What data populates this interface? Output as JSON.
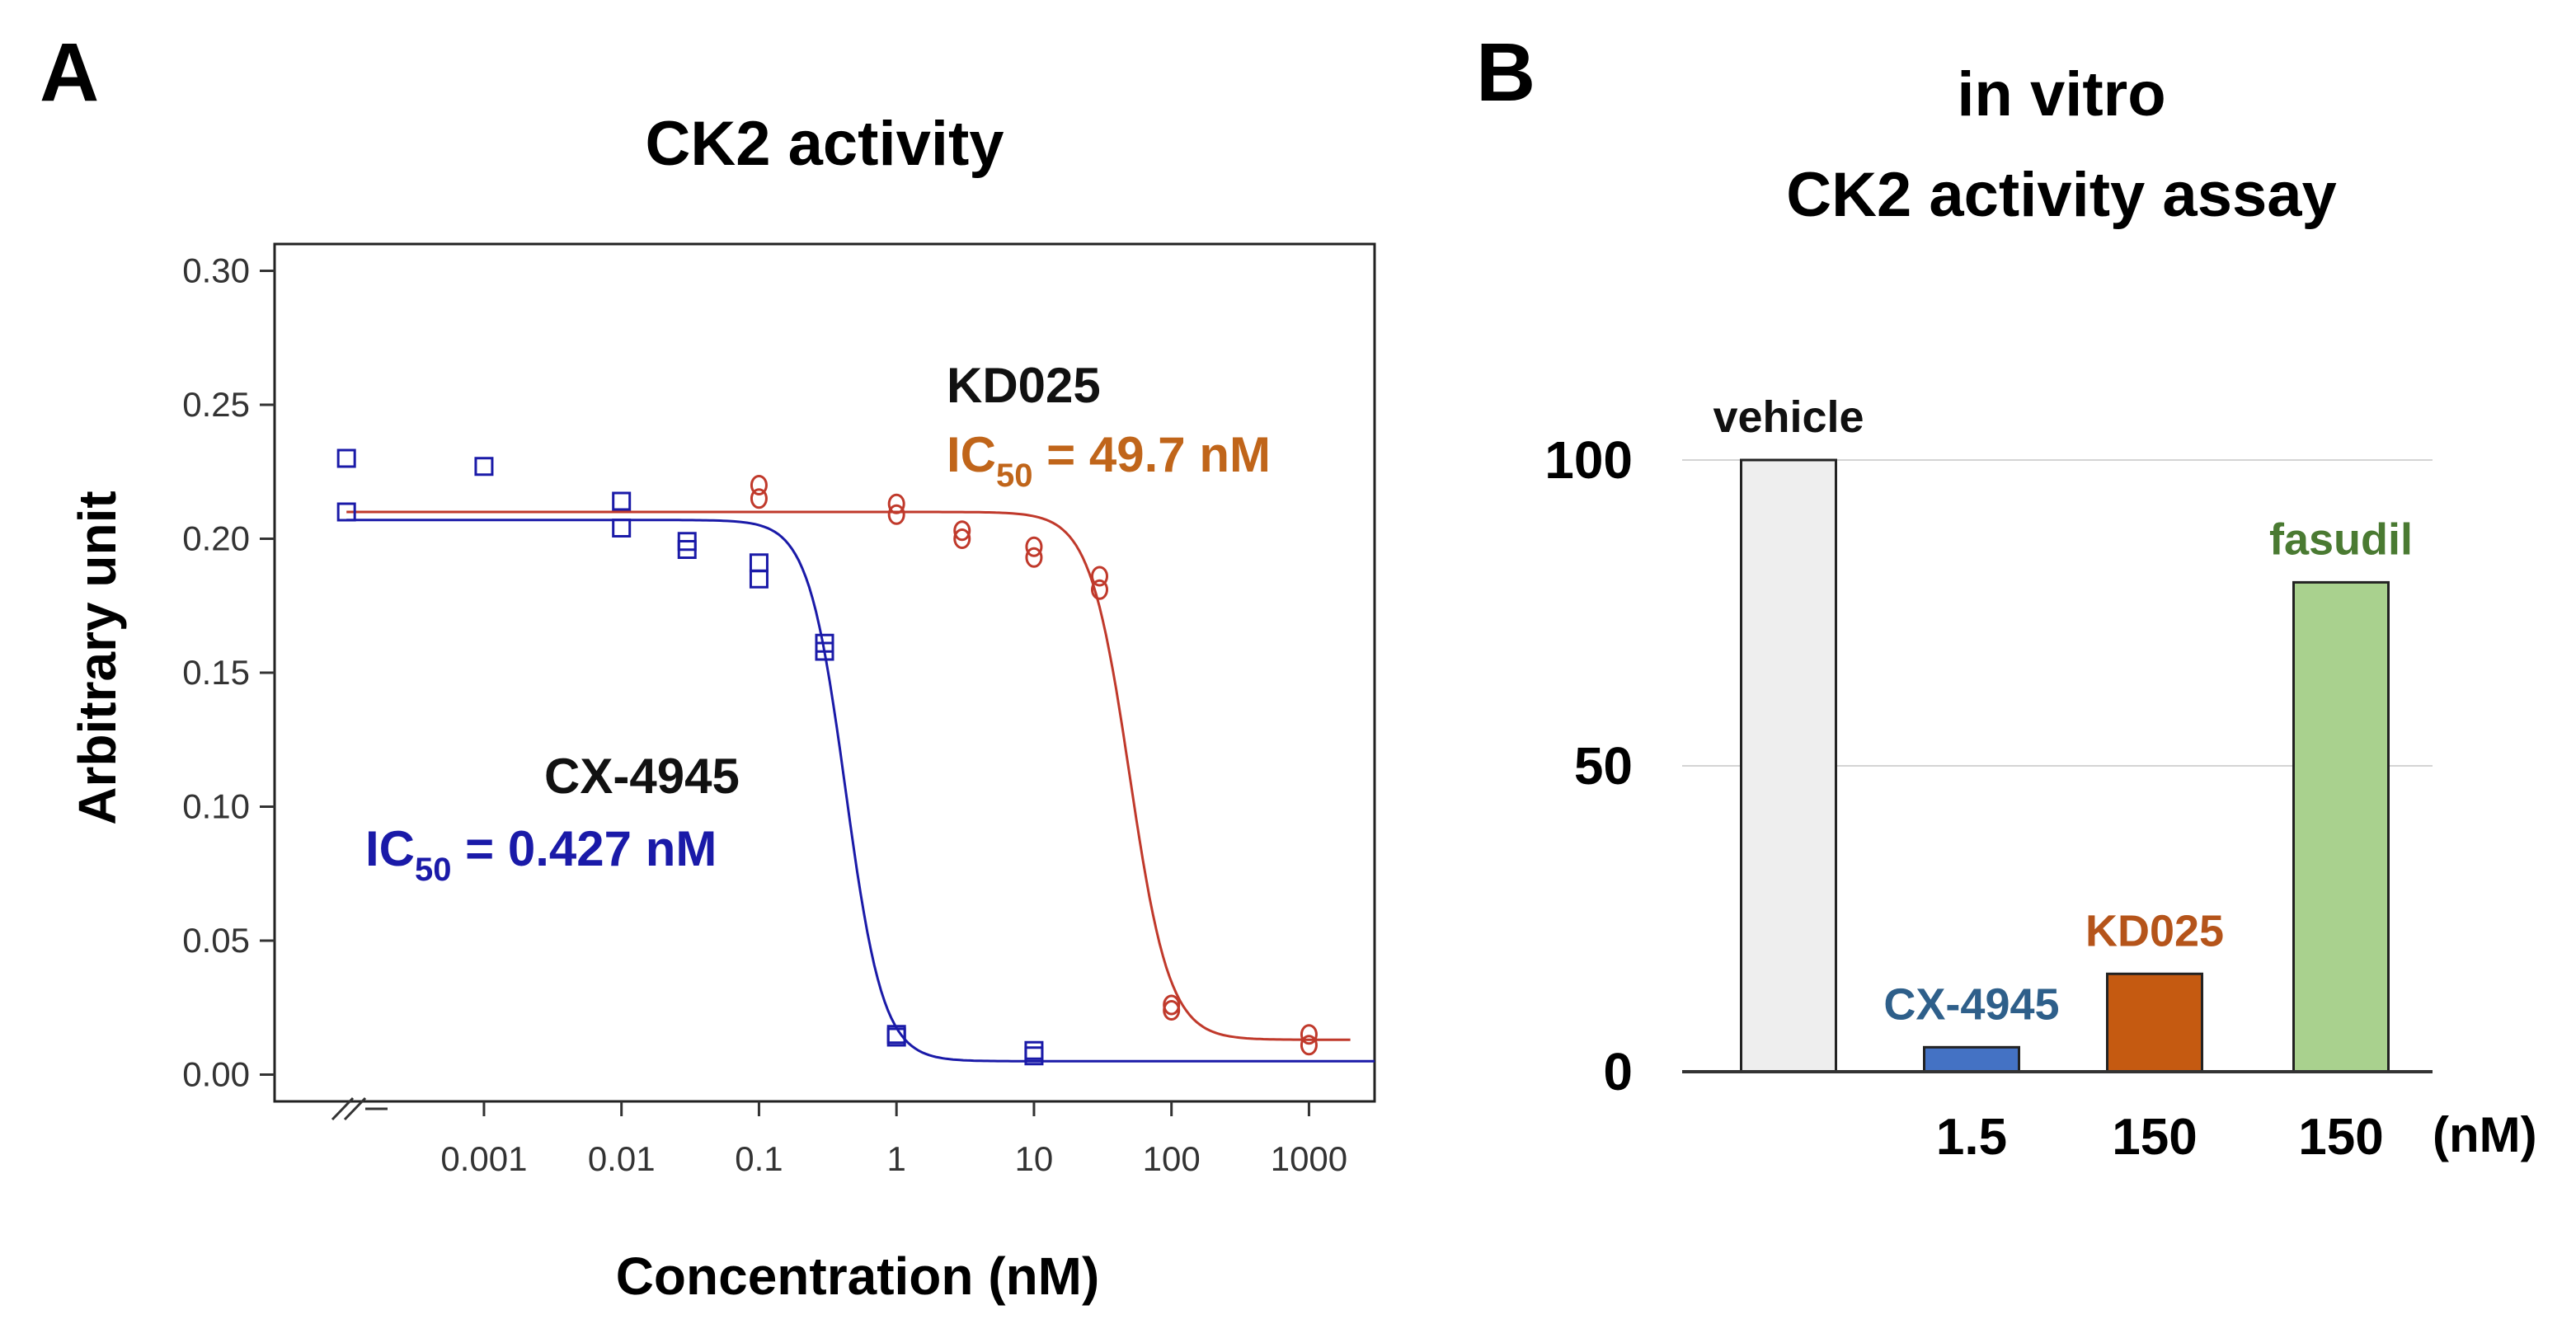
{
  "chart_data": [
    {
      "panel_label": "A",
      "type": "scatter",
      "title": "CK2 activity",
      "xlabel": "Concentration (nM)",
      "ylabel": "Arbitrary unit",
      "x_scale": "log",
      "x_ticks": [
        "0.001",
        "0.01",
        "0.1",
        "1",
        "10",
        "100",
        "1000"
      ],
      "x_tick_values": [
        0.001,
        0.01,
        0.1,
        1,
        10,
        100,
        1000
      ],
      "xlim": [
        3e-05,
        3000
      ],
      "y_ticks": [
        "0.00",
        "0.05",
        "0.10",
        "0.15",
        "0.20",
        "0.25",
        "0.30"
      ],
      "y_tick_values": [
        0,
        0.05,
        0.1,
        0.15,
        0.2,
        0.25,
        0.3
      ],
      "ylim": [
        -0.01,
        0.31
      ],
      "axis_break_on_x": true,
      "series": [
        {
          "name": "CX-4945",
          "label_name": "CX-4945",
          "ic50_label": "IC50 = 0.427 nM",
          "ic50_prefix": "IC",
          "ic50_sub": "50",
          "ic50_suffix": " = 0.427 nM",
          "color": "#1a1aa8",
          "name_color": "#111111",
          "marker": "square",
          "points": [
            {
              "x": 0.0001,
              "y": 0.23
            },
            {
              "x": 0.0001,
              "y": 0.21
            },
            {
              "x": 0.001,
              "y": 0.227
            },
            {
              "x": 0.01,
              "y": 0.214
            },
            {
              "x": 0.01,
              "y": 0.204
            },
            {
              "x": 0.03,
              "y": 0.199
            },
            {
              "x": 0.03,
              "y": 0.196
            },
            {
              "x": 0.1,
              "y": 0.191
            },
            {
              "x": 0.1,
              "y": 0.185
            },
            {
              "x": 0.3,
              "y": 0.161
            },
            {
              "x": 0.3,
              "y": 0.158
            },
            {
              "x": 1,
              "y": 0.015
            },
            {
              "x": 1,
              "y": 0.014
            },
            {
              "x": 10,
              "y": 0.009
            },
            {
              "x": 10,
              "y": 0.007
            }
          ],
          "fit": {
            "top": 0.207,
            "bottom": 0.005,
            "ic50": 0.427,
            "hill": 3.2,
            "x_from": 0.0001,
            "x_to": 3000
          }
        },
        {
          "name": "KD025",
          "label_name": "KD025",
          "ic50_label": "IC50 = 49.7 nM",
          "ic50_prefix": "IC",
          "ic50_sub": "50",
          "ic50_suffix": " = 49.7 nM",
          "color": "#c0392b",
          "name_color": "#111111",
          "label_color": "#c0651a",
          "marker": "circle",
          "points": [
            {
              "x": 0.1,
              "y": 0.22
            },
            {
              "x": 0.1,
              "y": 0.215
            },
            {
              "x": 1,
              "y": 0.213
            },
            {
              "x": 1,
              "y": 0.209
            },
            {
              "x": 3,
              "y": 0.203
            },
            {
              "x": 3,
              "y": 0.2
            },
            {
              "x": 10,
              "y": 0.197
            },
            {
              "x": 10,
              "y": 0.193
            },
            {
              "x": 30,
              "y": 0.186
            },
            {
              "x": 30,
              "y": 0.181
            },
            {
              "x": 100,
              "y": 0.026
            },
            {
              "x": 100,
              "y": 0.024
            },
            {
              "x": 1000,
              "y": 0.015
            },
            {
              "x": 1000,
              "y": 0.011
            }
          ],
          "fit": {
            "top": 0.21,
            "bottom": 0.013,
            "ic50": 49.7,
            "hill": 3.0,
            "x_from": 0.0001,
            "x_to": 2000
          }
        }
      ]
    },
    {
      "panel_label": "B",
      "type": "bar",
      "title_lines": [
        "in vitro",
        "CK2 activity assay"
      ],
      "categories": [
        "vehicle",
        "CX-4945",
        "KD025",
        "fasudil"
      ],
      "values": [
        100,
        4,
        16,
        80
      ],
      "ylim": [
        0,
        100
      ],
      "y_ticks": [
        "0",
        "50",
        "100"
      ],
      "y_tick_values": [
        0,
        50,
        100
      ],
      "grid": true,
      "bar_colors": [
        "#eeeeee",
        "#4472c4",
        "#c55a11",
        "#a9d18e"
      ],
      "label_colors": [
        "#111111",
        "#2e5f8a",
        "#b5541a",
        "#4a7a32"
      ],
      "doses": [
        "",
        "1.5",
        "150",
        "150"
      ],
      "dose_unit": "(nM)"
    }
  ]
}
